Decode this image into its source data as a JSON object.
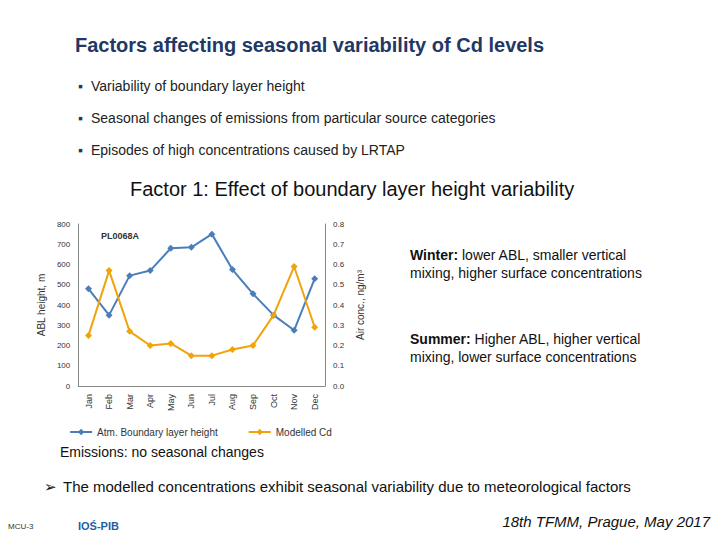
{
  "chart_data": {
    "type": "line",
    "title": "Factors affecting seasonal variability of Cd levels",
    "bullets": [
      "Variability of boundary layer height",
      "Seasonal changes of emissions from particular source categories",
      "Episodes of high concentrations caused by LRTAP"
    ],
    "subtitle": "Factor 1: Effect of boundary layer height variability",
    "chart_label": "PL0068A",
    "annotations": [
      {
        "heading": "Winter:",
        "text": "lower ABL, smaller vertical mixing, higher surface concentrations"
      },
      {
        "heading": "Summer:",
        "text": "Higher ABL, higher vertical mixing, lower surface concentrations"
      },
      {
        "text": "Emissions: no seasonal changes"
      },
      {
        "text": "The modelled concentrations exhibit seasonal variability due to meteorological factors"
      }
    ],
    "footer": "18th TFMM, Prague, May 2017",
    "logos": [
      "IOŚ-PIB",
      "MCU-3"
    ],
    "categories": [
      "Jan",
      "Feb",
      "Mar",
      "Apr",
      "May",
      "Jun",
      "Jul",
      "Aug",
      "Sep",
      "Oct",
      "Nov",
      "Dec"
    ],
    "series": [
      {
        "name": "Atm. Boundary layer height",
        "color": "#4a7ebb",
        "marker": "diamond",
        "values": [
          480,
          350,
          545,
          570,
          680,
          685,
          750,
          575,
          455,
          350,
          275,
          530
        ]
      },
      {
        "name": "Modelled Cd",
        "color": "#f0a30a",
        "marker": "diamond",
        "axis": "y2",
        "values": [
          0.25,
          0.57,
          0.27,
          0.2,
          0.21,
          0.15,
          0.15,
          0.18,
          0.2,
          0.35,
          0.59,
          0.29
        ]
      }
    ],
    "ylabel": "ABL height, m",
    "y2label": "Air conc., ng/m³",
    "ylim": [
      0,
      800
    ],
    "yticks": [
      0,
      100,
      200,
      300,
      400,
      500,
      600,
      700,
      800
    ],
    "y2lim": [
      0,
      0.8
    ],
    "y2ticks": [
      {
        "value": 0,
        "label": "0.0"
      },
      0.1,
      0.2,
      0.3,
      0.4,
      0.5,
      0.6,
      0.7,
      0.8
    ],
    "legend": "bottom",
    "grid": false
  }
}
